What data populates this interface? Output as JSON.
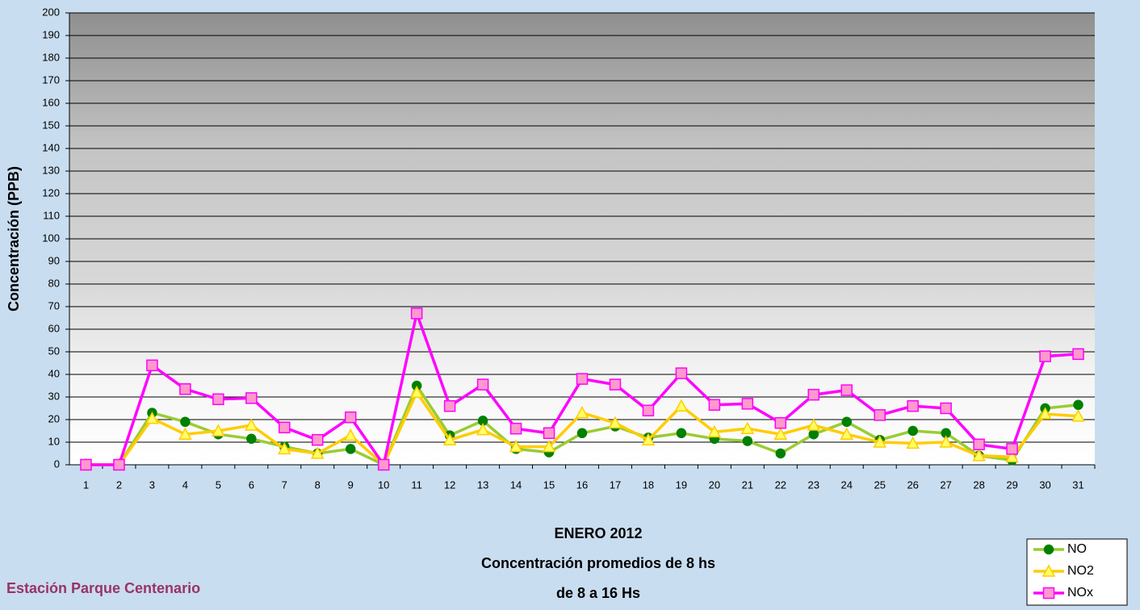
{
  "chart_data": {
    "type": "line",
    "title": [
      "ENERO 2012",
      "Concentración promedios de 8 hs",
      "de 8 a 16 Hs"
    ],
    "subtitle": "Estación Parque Centenario",
    "y_label": "Concentración (PPB)",
    "categories": [
      "1",
      "2",
      "3",
      "4",
      "5",
      "6",
      "7",
      "8",
      "9",
      "10",
      "11",
      "12",
      "13",
      "14",
      "15",
      "16",
      "17",
      "18",
      "19",
      "20",
      "21",
      "22",
      "23",
      "24",
      "25",
      "26",
      "27",
      "28",
      "29",
      "30",
      "31"
    ],
    "series": [
      {
        "name": "NO",
        "color": "#99cc33",
        "marker_color": "#008000",
        "marker": "circle",
        "values": [
          0,
          0,
          23,
          19,
          13.5,
          11.5,
          8,
          5,
          7,
          0,
          35,
          13,
          19.5,
          7,
          5.5,
          14,
          17,
          12,
          14,
          11.5,
          10.5,
          5,
          13.5,
          19,
          11,
          15,
          14,
          4,
          2,
          25,
          26.5
        ]
      },
      {
        "name": "NO2",
        "color": "#ffcc00",
        "marker_color": "#ffff66",
        "marker": "triangle",
        "values": [
          0,
          0,
          20.5,
          13.5,
          15,
          17.5,
          7,
          5,
          13,
          0,
          32,
          11,
          15.5,
          8,
          8,
          23,
          18.5,
          11,
          26,
          14.5,
          16,
          13.5,
          17.5,
          13.5,
          10,
          9.5,
          10,
          4,
          3.5,
          22.5,
          21.5
        ]
      },
      {
        "name": "NOx",
        "color": "#ff00ff",
        "marker_color": "#ff99cc",
        "marker": "square",
        "values": [
          0,
          0,
          44,
          33.5,
          29,
          29.5,
          16.5,
          11,
          21,
          0,
          67,
          26,
          35.5,
          16,
          14,
          38,
          35.5,
          24,
          40.5,
          26.5,
          27,
          18.5,
          31,
          33,
          22,
          26,
          25,
          9,
          7,
          48,
          49
        ]
      }
    ],
    "ylim": [
      0,
      200
    ],
    "yticks": [
      0,
      10,
      20,
      30,
      40,
      50,
      60,
      70,
      80,
      90,
      100,
      110,
      120,
      130,
      140,
      150,
      160,
      170,
      180,
      190,
      200
    ],
    "grid": true,
    "legend": "bottom-right"
  }
}
